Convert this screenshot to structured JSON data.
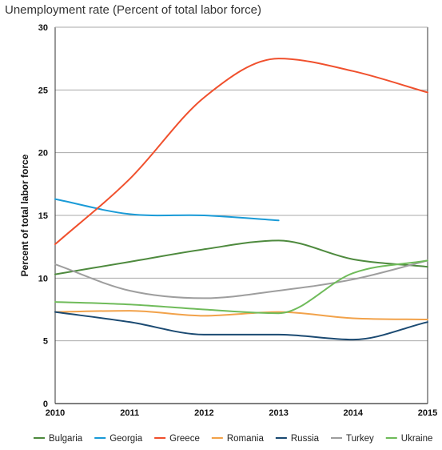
{
  "chart_data": {
    "type": "line",
    "title": "Unemployment rate (Percent of total labor force)",
    "ylabel": "Percent of total labor force",
    "xlabel": "",
    "x": [
      "2010",
      "2011",
      "2012",
      "2013",
      "2014",
      "2015"
    ],
    "ylim": [
      0,
      30
    ],
    "yticks": [
      0,
      5,
      10,
      15,
      20,
      25,
      30
    ],
    "grid": true,
    "legend_position": "bottom",
    "series": [
      {
        "name": "Bulgaria",
        "color": "#4e8a3e",
        "values": [
          10.3,
          11.3,
          12.3,
          13.0,
          11.5,
          10.9
        ]
      },
      {
        "name": "Georgia",
        "color": "#1a9bd7",
        "values": [
          16.3,
          15.1,
          15.0,
          14.6,
          null,
          null
        ]
      },
      {
        "name": "Greece",
        "color": "#f0502d",
        "values": [
          12.7,
          17.9,
          24.4,
          27.5,
          26.5,
          24.8
        ]
      },
      {
        "name": "Romania",
        "color": "#f2a24a",
        "values": [
          7.3,
          7.4,
          7.0,
          7.3,
          6.8,
          6.7
        ]
      },
      {
        "name": "Russia",
        "color": "#1b4a72",
        "values": [
          7.3,
          6.5,
          5.5,
          5.5,
          5.1,
          6.5
        ]
      },
      {
        "name": "Turkey",
        "color": "#9e9e9e",
        "values": [
          11.1,
          9.0,
          8.4,
          9.0,
          9.9,
          11.4
        ]
      },
      {
        "name": "Ukraine",
        "color": "#6fbb5a",
        "values": [
          8.1,
          7.9,
          7.5,
          7.2,
          10.4,
          11.4
        ]
      }
    ]
  }
}
